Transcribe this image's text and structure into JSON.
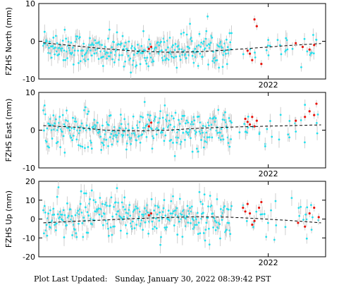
{
  "footer": {
    "label": "Plot Last Updated:",
    "timestamp": "Sunday, January 30, 2022 08:39:42 PST"
  },
  "colors": {
    "point": "#22e1ee",
    "recent_point": "#e8140c",
    "error_bar": "#cfcfcf",
    "trend": "#000000"
  },
  "chart_data": [
    {
      "type": "scatter",
      "ylabel": "FZHS North (mm)",
      "ylim": [
        -10,
        10
      ],
      "yticks": [
        -10,
        0,
        10
      ],
      "xtick_labels": [
        "2022"
      ],
      "xlim_years": [
        2021.0,
        2022.25
      ],
      "x_tick_year": 2022.0,
      "series": [
        {
          "kind": "daily",
          "x_range": [
            2021.0,
            2021.83
          ],
          "mean_trend": [
            -0.5,
            -1.5,
            -2.5,
            -2.8,
            -3.0,
            -2.7,
            -2.0,
            -1.8,
            -1.5
          ],
          "scatter": 2.2
        },
        {
          "kind": "recent",
          "x_range": [
            2021.83,
            2022.08
          ],
          "mean_trend": [
            -1.5,
            -1.2,
            -1.0
          ],
          "scatter": 2.5
        },
        {
          "kind": "trend",
          "values": [
            -0.4,
            -1.2,
            -2.0,
            -2.6,
            -2.9,
            -2.8,
            -2.3,
            -1.7,
            -1.1,
            -0.6
          ]
        }
      ],
      "highlighted": [
        {
          "x": 2021.48,
          "y": -2.0
        },
        {
          "x": 2021.49,
          "y": -1.5
        },
        {
          "x": 2021.91,
          "y": -2.5
        },
        {
          "x": 2021.92,
          "y": -3.3
        },
        {
          "x": 2021.93,
          "y": -5.0
        },
        {
          "x": 2021.94,
          "y": 5.8
        },
        {
          "x": 2021.95,
          "y": 4.0
        },
        {
          "x": 2021.97,
          "y": -6.0
        },
        {
          "x": 2022.12,
          "y": -0.5
        },
        {
          "x": 2022.15,
          "y": -1.5
        },
        {
          "x": 2022.18,
          "y": -2.2
        },
        {
          "x": 2022.2,
          "y": -1.0
        }
      ]
    },
    {
      "type": "scatter",
      "ylabel": "FZHS East (mm)",
      "ylim": [
        -10,
        10
      ],
      "yticks": [
        -10,
        0,
        10
      ],
      "xtick_labels": [
        "2022"
      ],
      "xlim_years": [
        2021.0,
        2022.25
      ],
      "x_tick_year": 2022.0,
      "series": [
        {
          "kind": "daily",
          "mean_trend": [
            1.0,
            0.3,
            -0.5,
            -0.4,
            0.2,
            0.5,
            0.2,
            0.6,
            1.0
          ],
          "scatter": 2.4
        },
        {
          "kind": "trend",
          "values": [
            1.2,
            0.8,
            0.0,
            -0.2,
            0.0,
            0.5,
            0.8,
            1.0,
            1.2,
            1.4
          ]
        }
      ],
      "highlighted": [
        {
          "x": 2021.48,
          "y": 1.0
        },
        {
          "x": 2021.49,
          "y": 2.0
        },
        {
          "x": 2021.9,
          "y": 3.0
        },
        {
          "x": 2021.91,
          "y": 2.2
        },
        {
          "x": 2021.92,
          "y": 1.5
        },
        {
          "x": 2021.93,
          "y": 3.5
        },
        {
          "x": 2021.94,
          "y": 1.0
        },
        {
          "x": 2021.95,
          "y": 2.5
        },
        {
          "x": 2022.12,
          "y": 2.5
        },
        {
          "x": 2022.16,
          "y": 3.5
        },
        {
          "x": 2022.18,
          "y": 5.0
        },
        {
          "x": 2022.2,
          "y": 4.0
        },
        {
          "x": 2022.21,
          "y": 7.0
        }
      ]
    },
    {
      "type": "scatter",
      "ylabel": "FZHS Up (mm)",
      "ylim": [
        -20,
        20
      ],
      "yticks": [
        -20,
        -10,
        0,
        10,
        20
      ],
      "xtick_labels": [
        "2022"
      ],
      "xlim_years": [
        2021.0,
        2022.25
      ],
      "x_tick_year": 2022.0,
      "series": [
        {
          "kind": "daily",
          "mean_trend": [
            -1.5,
            0.0,
            3.0,
            2.5,
            1.5,
            2.0,
            1.5,
            1.0,
            -0.5
          ],
          "scatter": 5.5
        },
        {
          "kind": "trend",
          "values": [
            -2.0,
            -1.2,
            -0.5,
            0.3,
            0.8,
            1.2,
            1.0,
            0.2,
            -0.8,
            -2.0
          ]
        }
      ],
      "highlighted": [
        {
          "x": 2021.48,
          "y": 2.0
        },
        {
          "x": 2021.49,
          "y": 3.0
        },
        {
          "x": 2021.89,
          "y": 6.0
        },
        {
          "x": 2021.9,
          "y": 4.0
        },
        {
          "x": 2021.91,
          "y": 8.0
        },
        {
          "x": 2021.92,
          "y": 3.0
        },
        {
          "x": 2021.93,
          "y": -3.0
        },
        {
          "x": 2021.94,
          "y": -1.0
        },
        {
          "x": 2021.96,
          "y": 6.0
        },
        {
          "x": 2021.97,
          "y": 9.0
        },
        {
          "x": 2022.13,
          "y": -2.0
        },
        {
          "x": 2022.16,
          "y": -4.0
        },
        {
          "x": 2022.18,
          "y": 3.0
        },
        {
          "x": 2022.2,
          "y": 6.0
        },
        {
          "x": 2022.22,
          "y": 1.0
        }
      ]
    }
  ]
}
